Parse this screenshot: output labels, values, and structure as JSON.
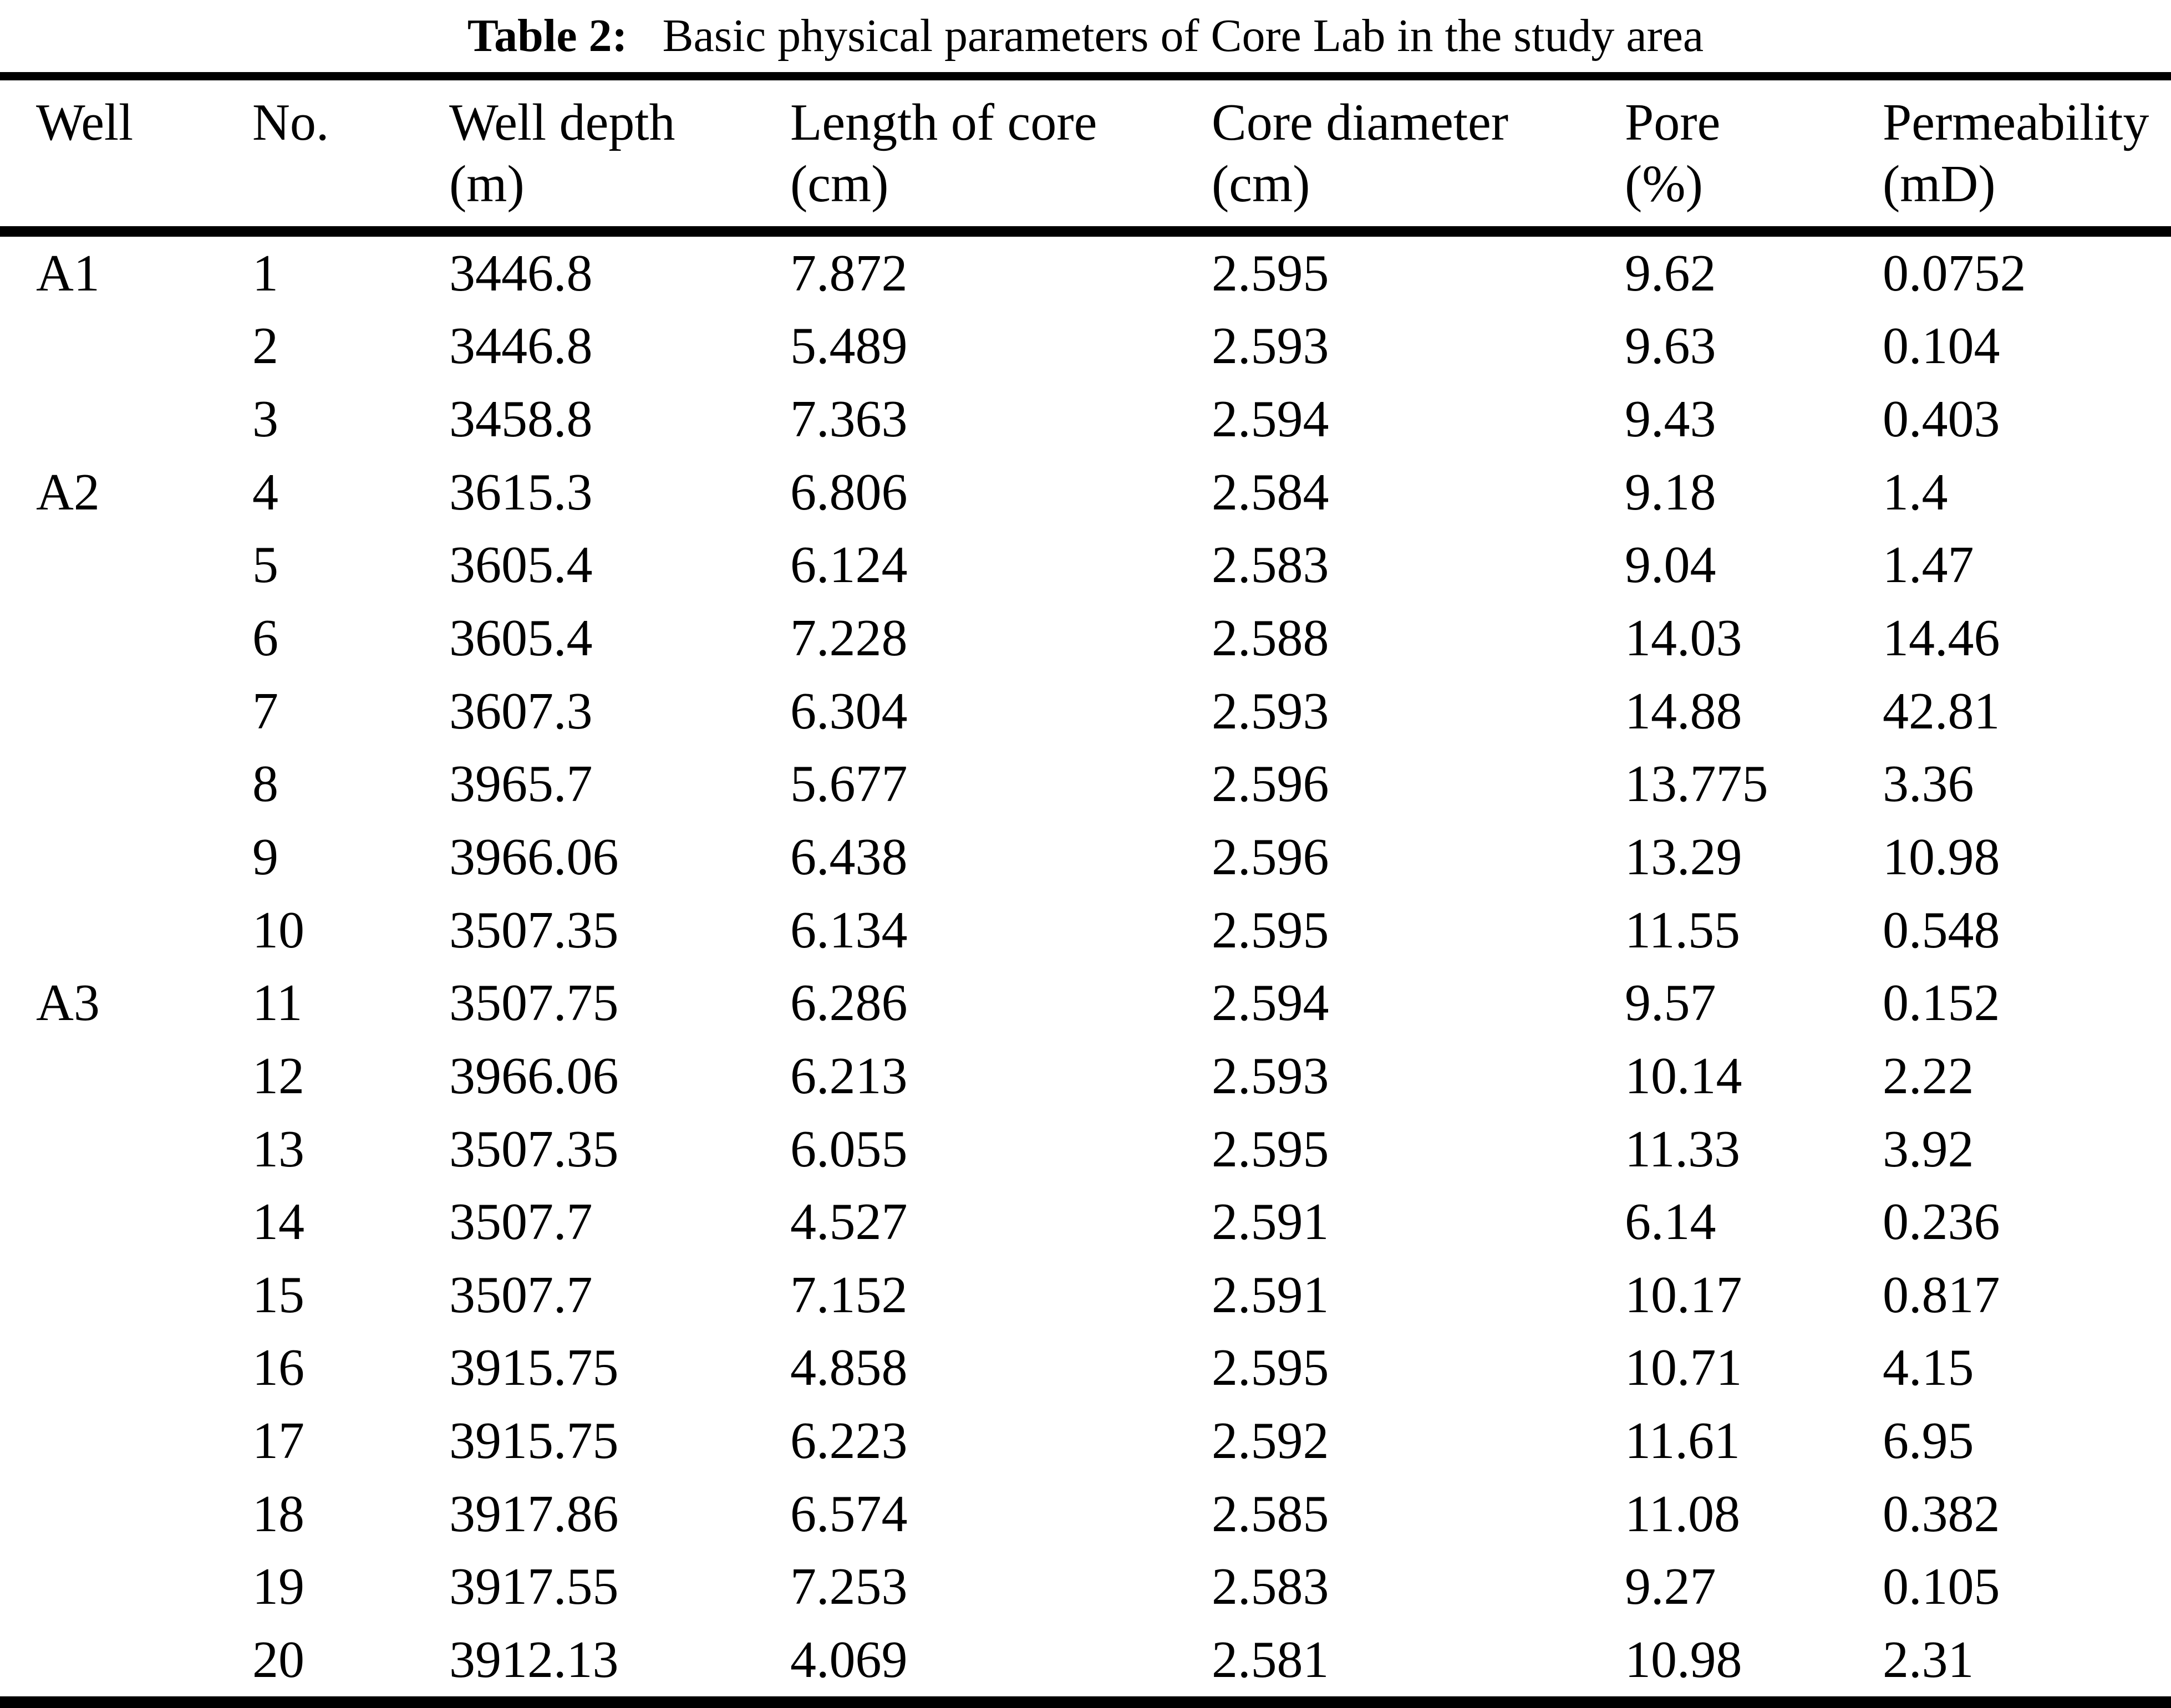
{
  "title": {
    "label": "Table 2:",
    "text": "Basic physical parameters of Core Lab in the study area"
  },
  "table": {
    "columns": [
      {
        "key": "well",
        "line1": "Well",
        "line2": ""
      },
      {
        "key": "no",
        "line1": "No.",
        "line2": ""
      },
      {
        "key": "depth",
        "line1": "Well depth",
        "line2": "(m)"
      },
      {
        "key": "length",
        "line1": "Length of core",
        "line2": "(cm)"
      },
      {
        "key": "diameter",
        "line1": "Core diameter",
        "line2": "(cm)"
      },
      {
        "key": "pore",
        "line1": "Pore",
        "line2": "(%)"
      },
      {
        "key": "perm",
        "line1": "Permeability",
        "line2": "(mD)"
      }
    ],
    "rows": [
      [
        "A1",
        "1",
        "3446.8",
        "7.872",
        "2.595",
        "9.62",
        "0.0752"
      ],
      [
        "",
        "2",
        "3446.8",
        "5.489",
        "2.593",
        "9.63",
        "0.104"
      ],
      [
        "",
        "3",
        "3458.8",
        "7.363",
        "2.594",
        "9.43",
        "0.403"
      ],
      [
        "A2",
        "4",
        "3615.3",
        "6.806",
        "2.584",
        "9.18",
        "1.4"
      ],
      [
        "",
        "5",
        "3605.4",
        "6.124",
        "2.583",
        "9.04",
        "1.47"
      ],
      [
        "",
        "6",
        "3605.4",
        "7.228",
        "2.588",
        "14.03",
        "14.46"
      ],
      [
        "",
        "7",
        "3607.3",
        "6.304",
        "2.593",
        "14.88",
        "42.81"
      ],
      [
        "",
        "8",
        "3965.7",
        "5.677",
        "2.596",
        "13.775",
        "3.36"
      ],
      [
        "",
        "9",
        "3966.06",
        "6.438",
        "2.596",
        "13.29",
        "10.98"
      ],
      [
        "",
        "10",
        "3507.35",
        "6.134",
        "2.595",
        "11.55",
        "0.548"
      ],
      [
        "A3",
        "11",
        "3507.75",
        "6.286",
        "2.594",
        "9.57",
        "0.152"
      ],
      [
        "",
        "12",
        "3966.06",
        "6.213",
        "2.593",
        "10.14",
        "2.22"
      ],
      [
        "",
        "13",
        "3507.35",
        "6.055",
        "2.595",
        "11.33",
        "3.92"
      ],
      [
        "",
        "14",
        "3507.7",
        "4.527",
        "2.591",
        "6.14",
        "0.236"
      ],
      [
        "",
        "15",
        "3507.7",
        "7.152",
        "2.591",
        "10.17",
        "0.817"
      ],
      [
        "",
        "16",
        "3915.75",
        "4.858",
        "2.595",
        "10.71",
        "4.15"
      ],
      [
        "",
        "17",
        "3915.75",
        "6.223",
        "2.592",
        "11.61",
        "6.95"
      ],
      [
        "",
        "18",
        "3917.86",
        "6.574",
        "2.585",
        "11.08",
        "0.382"
      ],
      [
        "",
        "19",
        "3917.55",
        "7.253",
        "2.583",
        "9.27",
        "0.105"
      ],
      [
        "",
        "20",
        "3912.13",
        "4.069",
        "2.581",
        "10.98",
        "2.31"
      ]
    ]
  },
  "colors": {
    "text": "#000000",
    "background": "#ffffff",
    "rule": "#000000"
  }
}
